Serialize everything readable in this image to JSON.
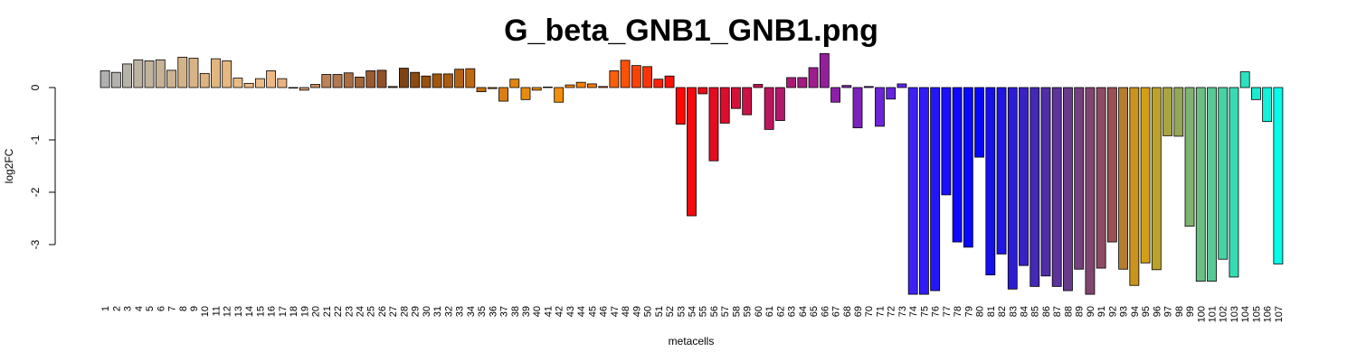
{
  "chart_data": {
    "type": "bar",
    "title": "G_beta_GNB1_GNB1.png",
    "xlabel": "metacells",
    "ylabel": "log2FC",
    "ylim": [
      -4.2,
      0.8
    ],
    "yticks": [
      0,
      -1,
      -2,
      -3
    ],
    "grid": false,
    "categories": [
      "1",
      "2",
      "3",
      "4",
      "5",
      "6",
      "7",
      "8",
      "9",
      "10",
      "11",
      "12",
      "13",
      "14",
      "15",
      "16",
      "17",
      "18",
      "19",
      "20",
      "21",
      "22",
      "23",
      "24",
      "25",
      "26",
      "27",
      "28",
      "29",
      "30",
      "31",
      "32",
      "33",
      "34",
      "35",
      "36",
      "37",
      "38",
      "39",
      "40",
      "41",
      "42",
      "43",
      "44",
      "45",
      "46",
      "47",
      "48",
      "49",
      "50",
      "51",
      "52",
      "53",
      "54",
      "55",
      "56",
      "57",
      "58",
      "59",
      "60",
      "61",
      "62",
      "63",
      "64",
      "65",
      "66",
      "67",
      "68",
      "69",
      "70",
      "71",
      "72",
      "73",
      "74",
      "75",
      "76",
      "77",
      "78",
      "79",
      "80",
      "81",
      "82",
      "83",
      "84",
      "85",
      "86",
      "87",
      "88",
      "89",
      "90",
      "91",
      "92",
      "93",
      "94",
      "95",
      "96",
      "97",
      "98",
      "99",
      "100",
      "101",
      "102",
      "103",
      "104",
      "105",
      "106",
      "107"
    ],
    "values": [
      0.32,
      0.29,
      0.45,
      0.53,
      0.51,
      0.53,
      0.33,
      0.58,
      0.56,
      0.27,
      0.55,
      0.51,
      0.18,
      0.08,
      0.17,
      0.32,
      0.17,
      0.0,
      -0.05,
      0.06,
      0.25,
      0.25,
      0.28,
      0.2,
      0.32,
      0.33,
      0.02,
      0.37,
      0.29,
      0.22,
      0.26,
      0.26,
      0.35,
      0.36,
      -0.08,
      -0.02,
      -0.26,
      0.16,
      -0.23,
      -0.05,
      0.01,
      -0.28,
      0.05,
      0.1,
      0.07,
      0.02,
      0.32,
      0.52,
      0.42,
      0.4,
      0.16,
      0.22,
      -0.7,
      -2.45,
      -0.12,
      -1.4,
      -0.68,
      -0.4,
      -0.52,
      0.06,
      -0.8,
      -0.63,
      0.19,
      0.19,
      0.38,
      0.65,
      -0.28,
      0.04,
      -0.77,
      0.02,
      -0.74,
      -0.22,
      0.07,
      -3.95,
      -3.95,
      -3.88,
      -2.05,
      -2.95,
      -3.05,
      -1.33,
      -3.58,
      -3.18,
      -3.85,
      -3.4,
      -3.8,
      -3.6,
      -3.8,
      -3.88,
      -3.47,
      -3.95,
      -3.45,
      -2.95,
      -3.47,
      -3.78,
      -3.35,
      -3.48,
      -0.92,
      -0.93,
      -2.65,
      -3.7,
      -3.7,
      -3.28,
      -3.62,
      0.3,
      -0.23,
      -0.65,
      -3.37
    ],
    "colors": [
      "#b0b0b0",
      "#b4b2ad",
      "#b8b3a8",
      "#bdb3a3",
      "#c2b39d",
      "#c7b297",
      "#ccb390",
      "#d2b38a",
      "#d7b385",
      "#dcb481",
      "#e1b67f",
      "#e6b880",
      "#eaba84",
      "#ecba85",
      "#edba86",
      "#edb886",
      "#e9b282",
      "#e0a87a",
      "#d49c70",
      "#c88f65",
      "#bc835a",
      "#b3784f",
      "#aa6e46",
      "#a2643c",
      "#9a5b32",
      "#915229",
      "#884a20",
      "#7d4313",
      "#8a4a12",
      "#955012",
      "#a05612",
      "#ab5c12",
      "#b66212",
      "#c06912",
      "#c97012",
      "#d27712",
      "#da7e12",
      "#e18511",
      "#e78b10",
      "#ec8f0e",
      "#f0900c",
      "#f38d0b",
      "#f5880a",
      "#f68009",
      "#f77708",
      "#f86c08",
      "#f96008",
      "#fa5208",
      "#fb4307",
      "#fc3307",
      "#fd2207",
      "#fe1207",
      "#ff0707",
      "#f5080e",
      "#ec0a18",
      "#e40c22",
      "#dc0e2e",
      "#d4103a",
      "#cc1246",
      "#c41452",
      "#bc165e",
      "#b4186a",
      "#ac1a76",
      "#a41c82",
      "#9c1e8e",
      "#941f9a",
      "#8c20a6",
      "#8421b2",
      "#7c22be",
      "#7423ca",
      "#6c24d6",
      "#6425e2",
      "#5c26ee",
      "#3d22f5",
      "#2f1cf8",
      "#2416fa",
      "#1a10fb",
      "#100afc",
      "#0808fd",
      "#0606f8",
      "#1510ec",
      "#2016e0",
      "#2c1cd2",
      "#3822c4",
      "#4428b6",
      "#502ea8",
      "#5c349a",
      "#683a8c",
      "#74407e",
      "#804670",
      "#8c4c62",
      "#985254",
      "#b47e2e",
      "#c89420",
      "#d2a014",
      "#bca22c",
      "#a8a442",
      "#94a658",
      "#80b270",
      "#6cbe84",
      "#58c894",
      "#46d2a4",
      "#38dab2",
      "#2ae2c0",
      "#1ceace",
      "#10f2dc",
      "#08fae8"
    ]
  }
}
